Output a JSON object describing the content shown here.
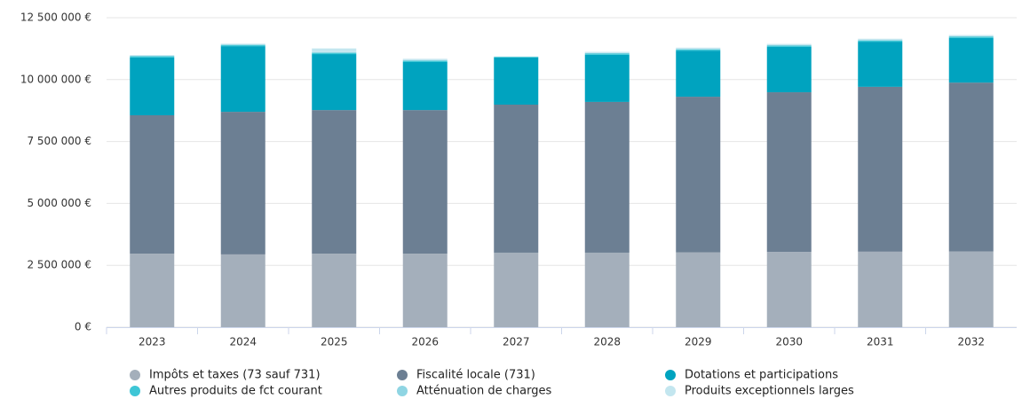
{
  "chart_data": {
    "type": "stacked_bar",
    "categories": [
      "2023",
      "2024",
      "2025",
      "2026",
      "2027",
      "2028",
      "2029",
      "2030",
      "2031",
      "2032"
    ],
    "series": [
      {
        "name": "Impôts et taxes (73 sauf 731)",
        "color": "#a4afbb",
        "values": [
          2970000,
          2940000,
          2970000,
          2970000,
          3010000,
          3010000,
          3020000,
          3040000,
          3050000,
          3060000
        ]
      },
      {
        "name": "Fiscalité locale (731)",
        "color": "#6c7f93",
        "values": [
          5590000,
          5760000,
          5800000,
          5800000,
          5980000,
          6090000,
          6290000,
          6450000,
          6660000,
          6820000
        ]
      },
      {
        "name": "Dotations et participations",
        "color": "#00a3bf",
        "values": [
          2330000,
          2650000,
          2260000,
          1940000,
          1900000,
          1900000,
          1860000,
          1830000,
          1820000,
          1800000
        ]
      },
      {
        "name": "Autres produits de fct courant",
        "color": "#3ec6d6",
        "values": [
          50000,
          50000,
          50000,
          50000,
          30000,
          50000,
          50000,
          50000,
          50000,
          50000
        ]
      },
      {
        "name": "Atténuation de charges",
        "color": "#8fd5e3",
        "values": [
          20000,
          20000,
          30000,
          30000,
          10000,
          20000,
          20000,
          20000,
          20000,
          20000
        ]
      },
      {
        "name": "Produits exceptionnels larges",
        "color": "#c3e6ef",
        "values": [
          30000,
          30000,
          150000,
          50000,
          10000,
          50000,
          50000,
          50000,
          50000,
          50000
        ]
      }
    ],
    "ylim": [
      0,
      12500000
    ],
    "yticks": [
      {
        "value": 0,
        "label": "0 €"
      },
      {
        "value": 2500000,
        "label": "2 500 000 €"
      },
      {
        "value": 5000000,
        "label": "5 000 000 €"
      },
      {
        "value": 7500000,
        "label": "7 500 000 €"
      },
      {
        "value": 10000000,
        "label": "10 000 000 €"
      },
      {
        "value": 12500000,
        "label": "12 500 000 €"
      }
    ],
    "grid": true,
    "legend": "bottom"
  }
}
